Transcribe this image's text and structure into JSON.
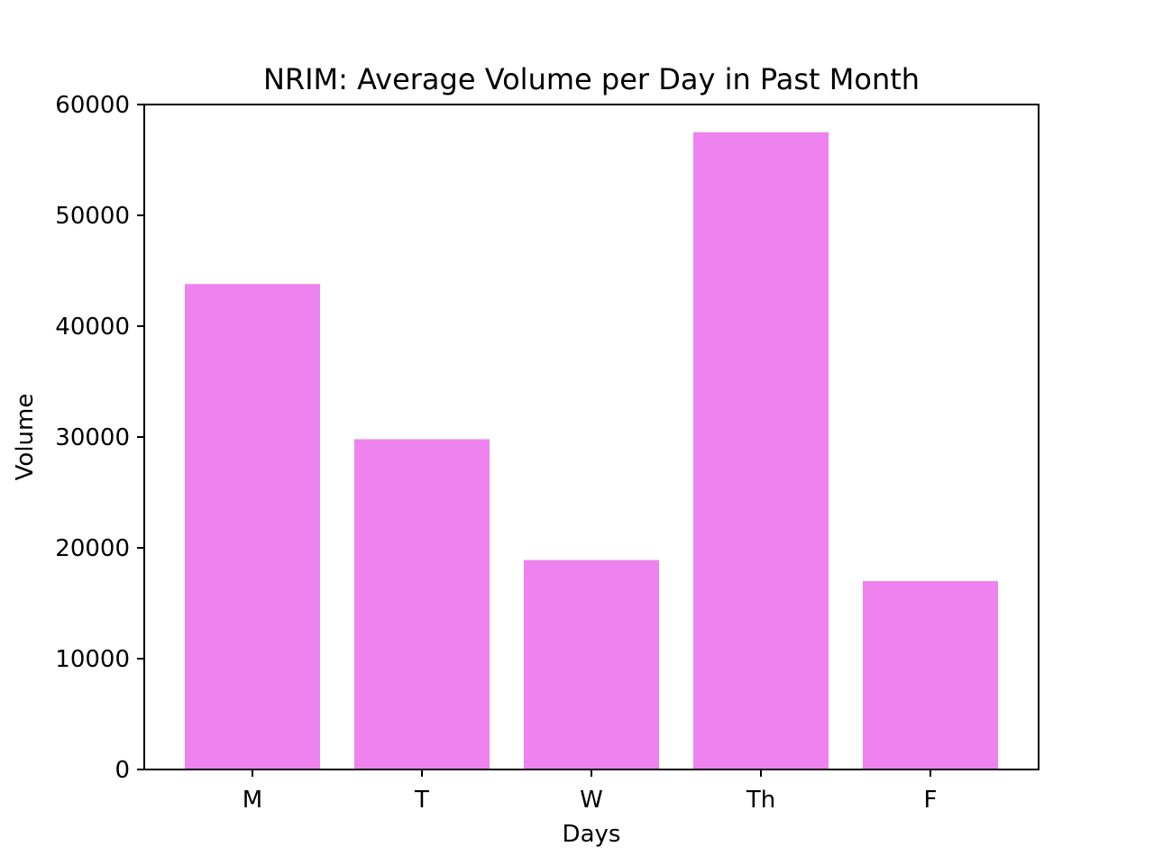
{
  "chart_data": {
    "type": "bar",
    "title": "NRIM: Average Volume per Day in Past Month",
    "xlabel": "Days",
    "ylabel": "Volume",
    "categories": [
      "M",
      "T",
      "W",
      "Th",
      "F"
    ],
    "values": [
      43800,
      29800,
      18900,
      57500,
      17000
    ],
    "ylim": [
      0,
      60000
    ],
    "yticks": [
      0,
      10000,
      20000,
      30000,
      40000,
      50000,
      60000
    ],
    "bar_color": "#ee82ee",
    "grid": false,
    "legend": "none"
  }
}
